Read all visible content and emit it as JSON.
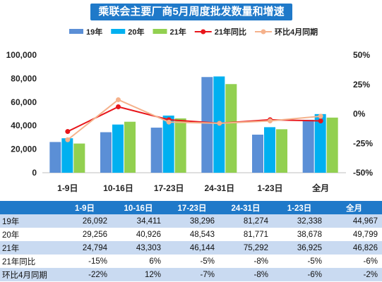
{
  "chart_data": {
    "type": "bar",
    "title": "乘联会主要厂商5月周度批发数量和增速",
    "categories": [
      "1-9日",
      "10-16日",
      "17-23日",
      "24-31日",
      "1-23日",
      "全月"
    ],
    "series": [
      {
        "name": "19年",
        "kind": "bar",
        "color": "#5b8fd6",
        "values": [
          26092,
          34411,
          38296,
          81274,
          32338,
          44967
        ]
      },
      {
        "name": "20年",
        "kind": "bar",
        "color": "#00b0f0",
        "values": [
          29256,
          40926,
          48543,
          81771,
          38678,
          49799
        ]
      },
      {
        "name": "21年",
        "kind": "bar",
        "color": "#92d050",
        "values": [
          24794,
          43303,
          46144,
          75292,
          36925,
          46826
        ]
      },
      {
        "name": "21年同比",
        "kind": "line",
        "axis": "right",
        "color": "#e8161b",
        "values": [
          -15,
          6,
          -5,
          -8,
          -5,
          -6
        ]
      },
      {
        "name": "环比4月同期",
        "kind": "line",
        "axis": "right",
        "color": "#f5b28c",
        "values": [
          -22,
          12,
          -7,
          -8,
          -6,
          -2
        ]
      }
    ],
    "y_left": {
      "min": 0,
      "max": 100000,
      "ticks": [
        "0",
        "20,000",
        "40,000",
        "60,000",
        "80,000",
        "100,000"
      ]
    },
    "y_right": {
      "min": -50,
      "max": 50,
      "ticks": [
        "-50%",
        "-25%",
        "0%",
        "25%",
        "50%"
      ]
    },
    "legend_position": "top",
    "grid": false
  },
  "table": {
    "headers": [
      "1-9日",
      "10-16日",
      "17-23日",
      "24-31日",
      "1-23日",
      "全月"
    ],
    "rows": [
      {
        "label": "19年",
        "cells": [
          "26,092",
          "34,411",
          "38,296",
          "81,274",
          "32,338",
          "44,967"
        ]
      },
      {
        "label": "20年",
        "cells": [
          "29,256",
          "40,926",
          "48,543",
          "81,771",
          "38,678",
          "49,799"
        ]
      },
      {
        "label": "21年",
        "cells": [
          "24,794",
          "43,303",
          "46,144",
          "75,292",
          "36,925",
          "46,826"
        ]
      },
      {
        "label": "21年同比",
        "cells": [
          "-15%",
          "6%",
          "-5%",
          "-8%",
          "-5%",
          "-6%"
        ]
      },
      {
        "label": "环比4月同期",
        "cells": [
          "-22%",
          "12%",
          "-7%",
          "-8%",
          "-6%",
          "-2%"
        ]
      }
    ]
  }
}
